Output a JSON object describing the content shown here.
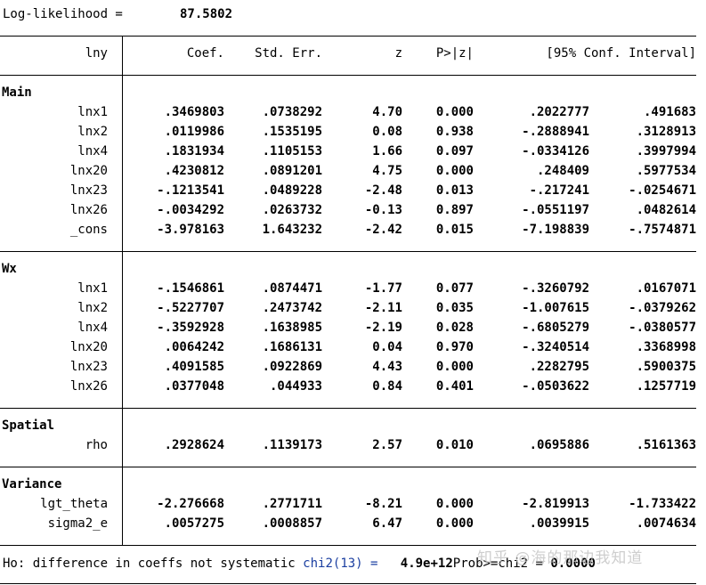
{
  "loglik": {
    "label": "Log-likelihood =",
    "value": "87.5802"
  },
  "header": {
    "dep": "lny",
    "coef": "Coef.",
    "se": "Std. Err.",
    "z": "z",
    "p": "P>|z|",
    "ci": "[95% Conf. Interval]"
  },
  "main": {
    "title": "Main",
    "rows": [
      {
        "name": "lnx1",
        "coef": ".3469803",
        "se": ".0738292",
        "z": "4.70",
        "p": "0.000",
        "lo": ".2022777",
        "hi": ".491683"
      },
      {
        "name": "lnx2",
        "coef": ".0119986",
        "se": ".1535195",
        "z": "0.08",
        "p": "0.938",
        "lo": "-.2888941",
        "hi": ".3128913"
      },
      {
        "name": "lnx4",
        "coef": ".1831934",
        "se": ".1105153",
        "z": "1.66",
        "p": "0.097",
        "lo": "-.0334126",
        "hi": ".3997994"
      },
      {
        "name": "lnx20",
        "coef": ".4230812",
        "se": ".0891201",
        "z": "4.75",
        "p": "0.000",
        "lo": ".248409",
        "hi": ".5977534"
      },
      {
        "name": "lnx23",
        "coef": "-.1213541",
        "se": ".0489228",
        "z": "-2.48",
        "p": "0.013",
        "lo": "-.217241",
        "hi": "-.0254671"
      },
      {
        "name": "lnx26",
        "coef": "-.0034292",
        "se": ".0263732",
        "z": "-0.13",
        "p": "0.897",
        "lo": "-.0551197",
        "hi": ".0482614"
      },
      {
        "name": "_cons",
        "coef": "-3.978163",
        "se": "1.643232",
        "z": "-2.42",
        "p": "0.015",
        "lo": "-7.198839",
        "hi": "-.7574871"
      }
    ]
  },
  "wx": {
    "title": "Wx",
    "rows": [
      {
        "name": "lnx1",
        "coef": "-.1546861",
        "se": ".0874471",
        "z": "-1.77",
        "p": "0.077",
        "lo": "-.3260792",
        "hi": ".0167071"
      },
      {
        "name": "lnx2",
        "coef": "-.5227707",
        "se": ".2473742",
        "z": "-2.11",
        "p": "0.035",
        "lo": "-1.007615",
        "hi": "-.0379262"
      },
      {
        "name": "lnx4",
        "coef": "-.3592928",
        "se": ".1638985",
        "z": "-2.19",
        "p": "0.028",
        "lo": "-.6805279",
        "hi": "-.0380577"
      },
      {
        "name": "lnx20",
        "coef": ".0064242",
        "se": ".1686131",
        "z": "0.04",
        "p": "0.970",
        "lo": "-.3240514",
        "hi": ".3368998"
      },
      {
        "name": "lnx23",
        "coef": ".4091585",
        "se": ".0922869",
        "z": "4.43",
        "p": "0.000",
        "lo": ".2282795",
        "hi": ".5900375"
      },
      {
        "name": "lnx26",
        "coef": ".0377048",
        "se": ".044933",
        "z": "0.84",
        "p": "0.401",
        "lo": "-.0503622",
        "hi": ".1257719"
      }
    ]
  },
  "spatial": {
    "title": "Spatial",
    "rows": [
      {
        "name": "rho",
        "coef": ".2928624",
        "se": ".1139173",
        "z": "2.57",
        "p": "0.010",
        "lo": ".0695886",
        "hi": ".5161363"
      }
    ]
  },
  "variance": {
    "title": "Variance",
    "rows": [
      {
        "name": "lgt_theta",
        "coef": "-2.276668",
        "se": ".2771711",
        "z": "-8.21",
        "p": "0.000",
        "lo": "-2.819913",
        "hi": "-1.733422"
      },
      {
        "name": "sigma2_e",
        "coef": ".0057275",
        "se": ".0008857",
        "z": "6.47",
        "p": "0.000",
        "lo": ".0039915",
        "hi": ".0074634"
      }
    ]
  },
  "footer": {
    "hausman_text": "Ho: difference in coeffs not systematic",
    "chi_label": "chi2(13) =",
    "chi_value": "4.9e+12",
    "prob_label": "Prob>=chi2 =",
    "prob_value": "0.0000"
  },
  "watermark": "知乎 @海的那边我知道"
}
